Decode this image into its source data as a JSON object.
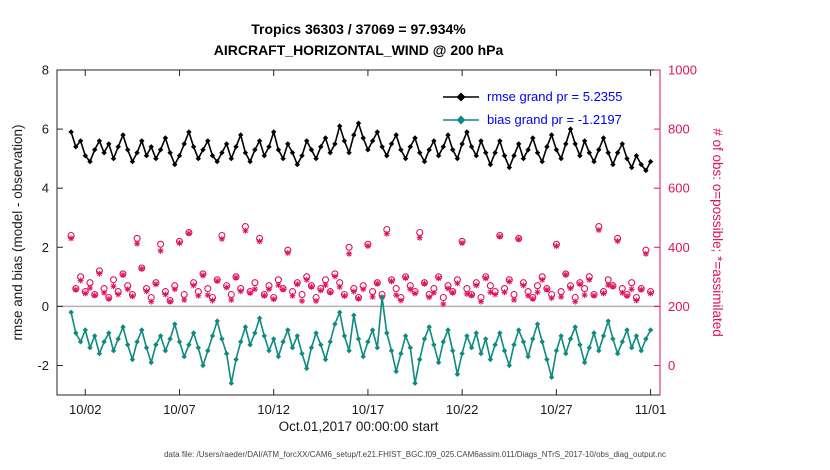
{
  "figure": {
    "title_line1": "Tropics 36303 / 37069 = 97.934%",
    "title_line2": "AIRCRAFT_HORIZONTAL_WIND @ 200 hPa",
    "xlabel": "Oct.01,2017 00:00:00 start",
    "ylabel_left": "rmse and bias (model - observation)",
    "ylabel_right": "# of obs: o=possible; *=assimilated",
    "caption": "data file: /Users/raeder/DAI/ATM_forcXX/CAM6_setup/f.e21.FHIST_BGC.f09_025.CAM6assim.011/Diags_NTrS_2017-10/obs_diag_output.nc",
    "legend": [
      {
        "series": "rmse",
        "label": "rmse grand pr = 5.2355"
      },
      {
        "series": "bias",
        "label": "bias grand pr = -1.2197"
      }
    ],
    "colors": {
      "rmse": "#000000",
      "bias": "#0e8a80",
      "obs": "#e0115f",
      "legend_text": "#0000ee",
      "zero_line": "#b3b3b3",
      "axis": "#262626"
    }
  },
  "chart_data": {
    "type": "line",
    "title": "Tropics 36303 / 37069 = 97.934% | AIRCRAFT_HORIZONTAL_WIND @ 200 hPa",
    "xlabel": "Oct.01,2017 00:00:00 start",
    "ylabel_left": "rmse and bias (model - observation)",
    "ylabel_right": "# of obs: o=possible; *=assimilated",
    "rmse_grand": 5.2355,
    "bias_grand": -1.2197,
    "possible_total": 37069,
    "assimilated_total": 36303,
    "assimilated_pct": 97.934,
    "x_start_day": 1.25,
    "x_step_days": 0.25,
    "xlim_days": [
      0.5,
      32.5
    ],
    "x_tick_days": [
      2,
      7,
      12,
      17,
      22,
      27,
      32
    ],
    "x_tick_labels": [
      "10/02",
      "10/07",
      "10/12",
      "10/17",
      "10/22",
      "10/27",
      "11/01"
    ],
    "ylim_left": [
      -3,
      8
    ],
    "y_ticks_left": [
      -2,
      0,
      2,
      4,
      6,
      8
    ],
    "ylim_right": [
      -100,
      1000
    ],
    "y_ticks_right": [
      0,
      200,
      400,
      600,
      800,
      1000
    ],
    "grid": false,
    "legend_position": "top-right-inside",
    "series": [
      {
        "name": "rmse",
        "axis": "left",
        "marker": "diamond",
        "values": [
          5.9,
          5.4,
          5.6,
          5.1,
          4.9,
          5.3,
          5.6,
          5.2,
          5.5,
          5.0,
          5.4,
          5.8,
          5.3,
          4.9,
          5.2,
          5.6,
          5.1,
          5.4,
          5.0,
          5.3,
          5.7,
          5.2,
          4.8,
          5.1,
          5.5,
          5.9,
          5.4,
          5.0,
          5.3,
          5.6,
          5.1,
          4.9,
          5.2,
          5.5,
          5.0,
          5.4,
          5.8,
          5.2,
          4.9,
          5.3,
          5.6,
          5.1,
          5.4,
          5.9,
          5.3,
          5.0,
          5.5,
          5.2,
          4.8,
          5.1,
          5.6,
          5.3,
          5.0,
          5.4,
          5.7,
          5.2,
          5.5,
          6.1,
          5.6,
          5.2,
          5.8,
          6.2,
          5.7,
          5.3,
          5.6,
          5.9,
          5.4,
          5.1,
          5.5,
          5.8,
          5.3,
          5.0,
          5.4,
          5.7,
          5.2,
          4.9,
          5.3,
          5.6,
          5.1,
          5.4,
          5.8,
          5.3,
          5.0,
          5.5,
          5.9,
          5.4,
          5.1,
          5.6,
          5.2,
          4.8,
          5.2,
          5.6,
          5.1,
          4.7,
          5.1,
          5.5,
          5.0,
          5.3,
          5.7,
          5.2,
          4.9,
          5.4,
          5.8,
          5.3,
          5.0,
          5.5,
          6.0,
          5.5,
          5.1,
          5.6,
          5.2,
          4.9,
          5.3,
          5.7,
          5.2,
          4.8,
          5.2,
          5.5,
          5.0,
          4.7,
          5.1,
          4.8,
          4.6,
          4.9
        ]
      },
      {
        "name": "bias",
        "axis": "left",
        "marker": "diamond",
        "values": [
          -0.2,
          -0.9,
          -1.2,
          -0.8,
          -1.4,
          -1.0,
          -1.6,
          -1.2,
          -0.9,
          -1.5,
          -1.1,
          -0.7,
          -1.3,
          -1.8,
          -1.2,
          -0.8,
          -1.4,
          -1.9,
          -1.3,
          -1.0,
          -1.5,
          -1.1,
          -0.6,
          -1.2,
          -1.7,
          -1.3,
          -0.9,
          -1.4,
          -2.0,
          -1.5,
          -1.0,
          -0.5,
          -1.1,
          -1.6,
          -2.6,
          -1.8,
          -1.2,
          -0.7,
          -1.3,
          -0.9,
          -0.4,
          -1.0,
          -1.5,
          -1.1,
          -1.7,
          -1.2,
          -0.8,
          -1.4,
          -1.0,
          -1.6,
          -2.1,
          -1.4,
          -0.9,
          -1.3,
          -1.8,
          -1.2,
          -0.6,
          -0.2,
          -1.0,
          -1.5,
          -0.3,
          -1.1,
          -1.7,
          -1.2,
          -0.8,
          -1.4,
          0.3,
          -0.9,
          -1.5,
          -2.2,
          -1.6,
          -1.0,
          -1.4,
          -2.6,
          -1.8,
          -1.1,
          -0.7,
          -1.3,
          -1.9,
          -1.2,
          -0.8,
          -1.5,
          -2.3,
          -1.6,
          -1.0,
          -1.4,
          -0.9,
          -1.6,
          -1.1,
          -1.8,
          -1.3,
          -0.9,
          -1.5,
          -2.0,
          -1.3,
          -0.8,
          -1.2,
          -1.7,
          -1.1,
          -0.6,
          -1.2,
          -1.8,
          -2.4,
          -1.5,
          -1.0,
          -1.6,
          -1.1,
          -0.7,
          -1.3,
          -1.9,
          -1.4,
          -0.9,
          -1.5,
          -1.0,
          -0.5,
          -1.1,
          -1.6,
          -1.2,
          -0.8,
          -1.4,
          -1.0,
          -1.5,
          -1.1,
          -0.8
        ]
      },
      {
        "name": "possible",
        "axis": "right",
        "marker": "o",
        "values": [
          440,
          260,
          300,
          250,
          280,
          240,
          320,
          260,
          230,
          290,
          250,
          310,
          270,
          240,
          430,
          330,
          260,
          230,
          280,
          410,
          250,
          220,
          270,
          420,
          240,
          450,
          280,
          250,
          310,
          260,
          230,
          290,
          440,
          270,
          240,
          300,
          260,
          470,
          250,
          280,
          430,
          240,
          270,
          230,
          290,
          260,
          390,
          250,
          280,
          240,
          300,
          270,
          230,
          260,
          290,
          250,
          310,
          280,
          240,
          400,
          260,
          230,
          270,
          410,
          250,
          280,
          240,
          460,
          290,
          260,
          230,
          300,
          270,
          250,
          450,
          280,
          240,
          260,
          300,
          230,
          270,
          250,
          290,
          420,
          260,
          240,
          280,
          230,
          300,
          270,
          250,
          440,
          260,
          290,
          240,
          430,
          280,
          250,
          230,
          270,
          300,
          260,
          240,
          410,
          250,
          310,
          270,
          230,
          280,
          260,
          300,
          240,
          470,
          250,
          290,
          270,
          430,
          260,
          240,
          280,
          230,
          260,
          390,
          250
        ]
      },
      {
        "name": "assimilated",
        "axis": "right",
        "marker": "*",
        "values": [
          430,
          256,
          288,
          244,
          262,
          237,
          311,
          246,
          225,
          268,
          240,
          306,
          258,
          234,
          412,
          327,
          251,
          216,
          275,
          388,
          240,
          216,
          258,
          414,
          222,
          447,
          271,
          236,
          305,
          238,
          220,
          286,
          428,
          264,
          222,
          297,
          251,
          456,
          245,
          258,
          420,
          236,
          258,
          224,
          272,
          257,
          381,
          236,
          275,
          218,
          290,
          266,
          218,
          254,
          272,
          247,
          301,
          266,
          235,
          378,
          250,
          226,
          258,
          404,
          232,
          277,
          231,
          446,
          285,
          238,
          220,
          296,
          258,
          244,
          432,
          277,
          231,
          246,
          295,
          208,
          260,
          246,
          278,
          414,
          242,
          237,
          271,
          216,
          295,
          248,
          240,
          436,
          248,
          284,
          222,
          427,
          271,
          236,
          225,
          248,
          290,
          256,
          228,
          404,
          232,
          307,
          261,
          216,
          275,
          238,
          290,
          236,
          458,
          244,
          272,
          267,
          421,
          246,
          235,
          258,
          220,
          256,
          378,
          244
        ]
      }
    ]
  }
}
